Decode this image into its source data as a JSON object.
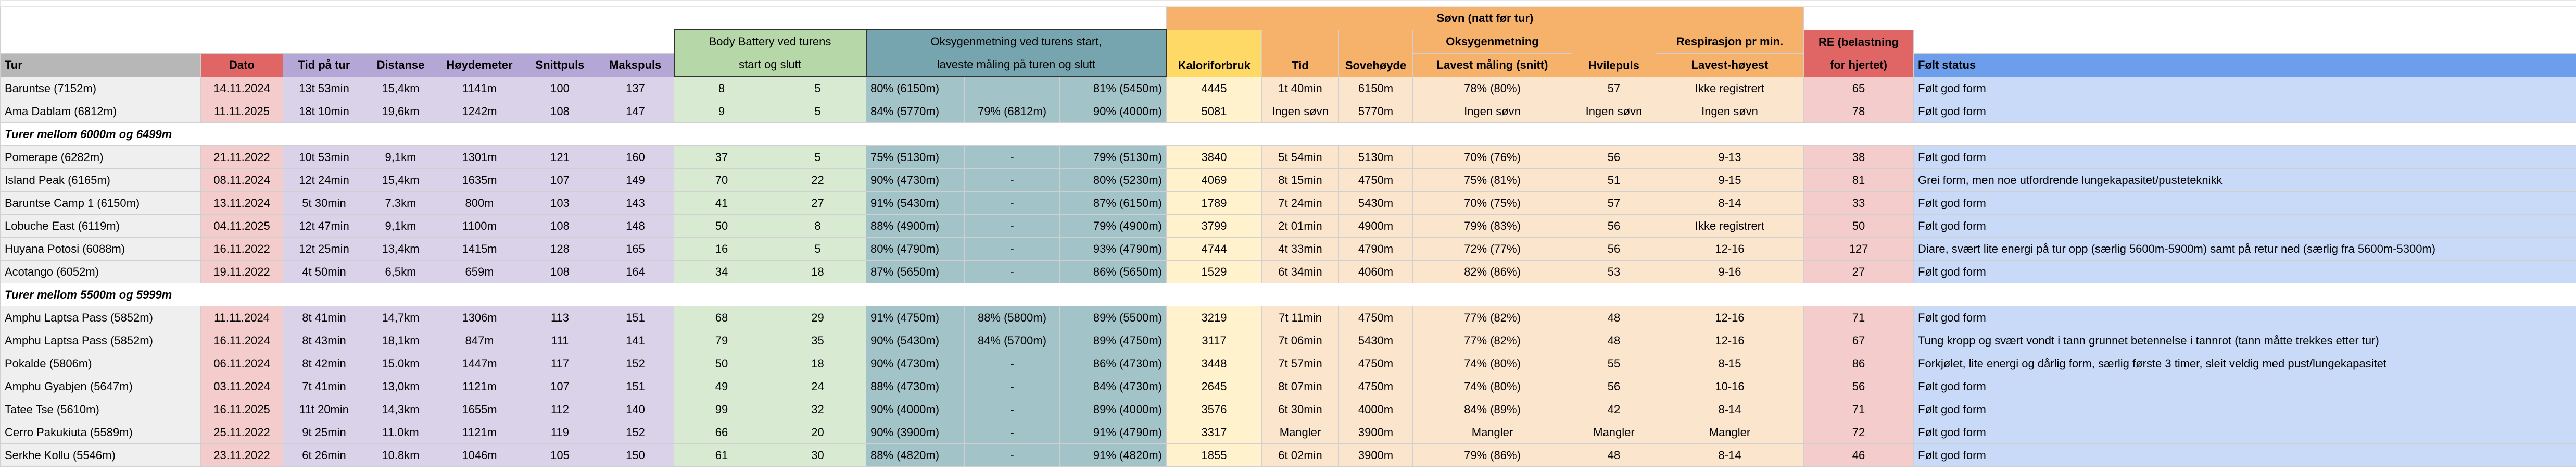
{
  "header": {
    "sovn": "Søvn (natt før tur)",
    "body_battery": [
      "Body Battery ved turens",
      "start og slutt"
    ],
    "oksygen": [
      "Oksygenmetning ved turens start,",
      "laveste måling på turen og slutt"
    ],
    "oksygen_sovn": "Oksygenmetning",
    "respirasjon": "Respirasjon pr min.",
    "re": [
      "RE (belastning",
      "for hjertet)"
    ],
    "columns": {
      "tur": "Tur",
      "dato": "Dato",
      "tid": "Tid på tur",
      "distanse": "Distanse",
      "hoydemeter": "Høydemeter",
      "snittpuls": "Snittpuls",
      "makspuls": "Makspuls",
      "kalori": "Kaloriforbruk",
      "sovn_tid": "Tid",
      "sovehoyde": "Sovehøyde",
      "oksygen_lavest": "Lavest måling (snitt)",
      "hvilepuls": "Hvilepuls",
      "resp": "Lavest-høyest",
      "status": "Følt status"
    }
  },
  "groups": [
    {
      "rows": [
        [
          "Baruntse (7152m)",
          "14.11.2024",
          "13t 53min",
          "15,4km",
          "1141m",
          100,
          137,
          8,
          5,
          "80% (6150m)",
          null,
          "81% (5450m)",
          4445,
          "1t 40min",
          "6150m",
          "78% (80%)",
          57,
          "Ikke registrert",
          65,
          "Følt god form"
        ],
        [
          "Ama Dablam (6812m)",
          "11.11.2025",
          "18t 10min",
          "19,6km",
          "1242m",
          108,
          147,
          9,
          5,
          "84% (5770m)",
          "79% (6812m)",
          "90% (4000m)",
          5081,
          "Ingen søvn",
          "5770m",
          "Ingen søvn",
          "Ingen søvn",
          "Ingen søvn",
          78,
          "Følt god form"
        ]
      ]
    },
    {
      "title": "Turer mellom 6000m og 6499m",
      "rows": [
        [
          "Pomerape (6282m)",
          "21.11.2022",
          "10t 53min",
          "9,1km",
          "1301m",
          121,
          160,
          37,
          5,
          "75% (5130m)",
          "-",
          "79% (5130m)",
          3840,
          "5t 54min",
          "5130m",
          "70% (76%)",
          56,
          "9-13",
          38,
          "Følt god form"
        ],
        [
          "Island Peak (6165m)",
          "08.11.2024",
          "12t 24min",
          "15,4km",
          "1635m",
          107,
          149,
          70,
          22,
          "90% (4730m)",
          "-",
          "80% (5230m)",
          4069,
          "8t 15min",
          "4750m",
          "75% (81%)",
          51,
          "9-15",
          81,
          "Grei form, men noe utfordrende lungekapasitet/pusteteknikk"
        ],
        [
          "Baruntse Camp 1 (6150m)",
          "13.11.2024",
          "5t 30min",
          "7.3km",
          "800m",
          103,
          143,
          41,
          27,
          "91% (5430m)",
          "-",
          "87% (6150m)",
          1789,
          "7t 24min",
          "5430m",
          "70% (75%)",
          57,
          "8-14",
          33,
          "Følt god form"
        ],
        [
          "Lobuche East (6119m)",
          "04.11.2025",
          "12t 47min",
          "9,1km",
          "1100m",
          108,
          148,
          50,
          8,
          "88% (4900m)",
          "-",
          "79% (4900m)",
          3799,
          "2t 01min",
          "4900m",
          "79% (83%)",
          56,
          "Ikke registrert",
          50,
          "Følt god form"
        ],
        [
          "Huyana Potosi (6088m)",
          "16.11.2022",
          "12t 25min",
          "13,4km",
          "1415m",
          128,
          165,
          16,
          5,
          "80% (4790m)",
          "-",
          "93% (4790m)",
          4744,
          "4t 33min",
          "4790m",
          "72% (77%)",
          56,
          "12-16",
          127,
          "Diare, svært lite energi på tur opp (særlig 5600m-5900m) samt på retur ned (særlig fra 5600m-5300m)"
        ],
        [
          "Acotango (6052m)",
          "19.11.2022",
          "4t 50min",
          "6,5km",
          "659m",
          108,
          164,
          34,
          18,
          "87% (5650m)",
          "-",
          "86% (5650m)",
          1529,
          "6t 34min",
          "4060m",
          "82% (86%)",
          53,
          "9-16",
          27,
          "Følt god form"
        ]
      ]
    },
    {
      "title": "Turer mellom 5500m og 5999m",
      "rows": [
        [
          "Amphu Laptsa Pass (5852m)",
          "11.11.2024",
          "8t 41min",
          "14,7km",
          "1306m",
          113,
          151,
          68,
          29,
          "91% (4750m)",
          "88% (5800m)",
          "89% (5500m)",
          3219,
          "7t 11min",
          "4750m",
          "77% (82%)",
          48,
          "12-16",
          71,
          "Følt god form"
        ],
        [
          "Amphu Laptsa Pass (5852m)",
          "16.11.2024",
          "8t 43min",
          "18,1km",
          "847m",
          111,
          141,
          79,
          35,
          "90% (5430m)",
          "84% (5700m)",
          "89% (4750m)",
          3117,
          "7t 06min",
          "5430m",
          "77% (82%)",
          48,
          "12-16",
          67,
          "Tung kropp og svært vondt i tann grunnet betennelse i tannrot (tann måtte trekkes etter tur)"
        ],
        [
          "Pokalde (5806m)",
          "06.11.2024",
          "8t 42min",
          "15.0km",
          "1447m",
          117,
          152,
          50,
          18,
          "90% (4730m)",
          "-",
          "86% (4730m)",
          3448,
          "7t 57min",
          "4750m",
          "74% (80%)",
          55,
          "8-15",
          86,
          "Forkjølet, lite energi og dårlig form, særlig første 3 timer, sleit veldig med pust/lungekapasitet"
        ],
        [
          "Amphu Gyabjen (5647m)",
          "03.11.2024",
          "7t 41min",
          "13,0km",
          "1121m",
          107,
          151,
          49,
          24,
          "88% (4730m)",
          "-",
          "84% (4730m)",
          2645,
          "8t 07min",
          "4750m",
          "74% (80%)",
          56,
          "10-16",
          56,
          "Følt god form"
        ],
        [
          "Tatee Tse (5610m)",
          "16.11.2025",
          "11t 20min",
          "14,3km",
          "1655m",
          112,
          140,
          99,
          32,
          "90% (4000m)",
          "-",
          "89% (4000m)",
          3576,
          "6t 30min",
          "4000m",
          "84% (89%)",
          42,
          "8-14",
          71,
          "Følt god form"
        ],
        [
          "Cerro Pakukiuta (5589m)",
          "25.11.2022",
          "9t 25min",
          "11.0km",
          "1121m",
          119,
          152,
          66,
          20,
          "90% (3900m)",
          "-",
          "91% (4790m)",
          3317,
          "Mangler",
          "3900m",
          "Mangler",
          "Mangler",
          "Mangler",
          72,
          "Følt god form"
        ],
        [
          "Serkhe Kollu (5546m)",
          "23.11.2022",
          "6t 26min",
          "10.8km",
          "1046m",
          105,
          150,
          61,
          30,
          "88% (4820m)",
          "-",
          "91% (4820m)",
          1855,
          "6t 02min",
          "3900m",
          "79% (86%)",
          48,
          "8-14",
          46,
          "Følt god form"
        ]
      ]
    }
  ]
}
